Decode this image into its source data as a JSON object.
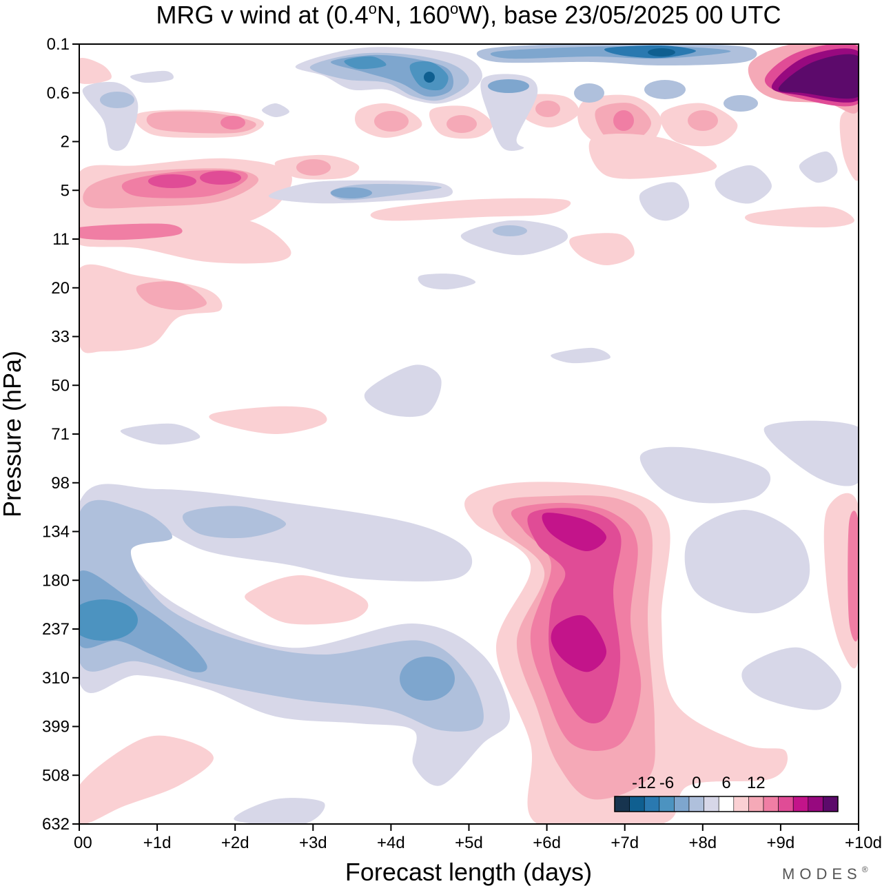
{
  "chart_data": {
    "type": "heatmap",
    "title": "MRG v wind at (0.4°N, 160°W),  base 23/05/2025  00 UTC",
    "title_parts": {
      "prefix": "MRG v wind at (0.4",
      "lat_unit": "N, 160",
      "lon_unit": "W),  base 23/05/2025  00 UTC",
      "degree": "o"
    },
    "xlabel": "Forecast length (days)",
    "ylabel": "Pressure (hPa)",
    "x_ticks": [
      "00",
      "+1d",
      "+2d",
      "+3d",
      "+4d",
      "+5d",
      "+6d",
      "+7d",
      "+8d",
      "+9d",
      "+10d"
    ],
    "x_range_days": [
      0,
      10
    ],
    "y_ticks": [
      "0.1",
      "0.6",
      "2",
      "5",
      "11",
      "20",
      "33",
      "50",
      "71",
      "98",
      "134",
      "180",
      "237",
      "310",
      "399",
      "508",
      "632"
    ],
    "y_scale": "categorical (model levels)",
    "colorbar": {
      "labels": [
        "-12",
        "-6",
        "0",
        "6",
        "12"
      ],
      "label_at_box_edge": [
        1,
        3,
        5,
        7,
        9
      ],
      "colors": [
        "#17344f",
        "#0f5f90",
        "#2a79b0",
        "#4c93c0",
        "#7ea6ce",
        "#afc0dc",
        "#d7d7e8",
        "#ffffff",
        "#fad0d3",
        "#f5a9b7",
        "#f07ea4",
        "#e04c96",
        "#c3148a",
        "#97097f",
        "#5c0a6b"
      ],
      "placement": "bottom-right"
    },
    "features": [
      {
        "sign": "positive",
        "level": 4,
        "x_days": [
          5.8,
          7.2
        ],
        "pressure_hPa": [
          134,
          310
        ],
        "note": "magenta maxima near +6.5d"
      },
      {
        "sign": "negative",
        "level": 3,
        "x_days": [
          0,
          1
        ],
        "pressure_hPa": [
          180,
          310
        ],
        "note": "blue minimum near +0.5d"
      },
      {
        "sign": "negative",
        "level": 6,
        "x_days": [
          7.2,
          7.7
        ],
        "pressure_hPa": [
          0.1,
          0.3
        ],
        "note": "dark blue at top"
      },
      {
        "sign": "positive",
        "level": 7,
        "x_days": [
          9.3,
          10
        ],
        "pressure_hPa": [
          0.1,
          0.6
        ],
        "note": "dark purple upper right"
      }
    ]
  },
  "branding": {
    "logo": "MODES",
    "registered": "®"
  }
}
